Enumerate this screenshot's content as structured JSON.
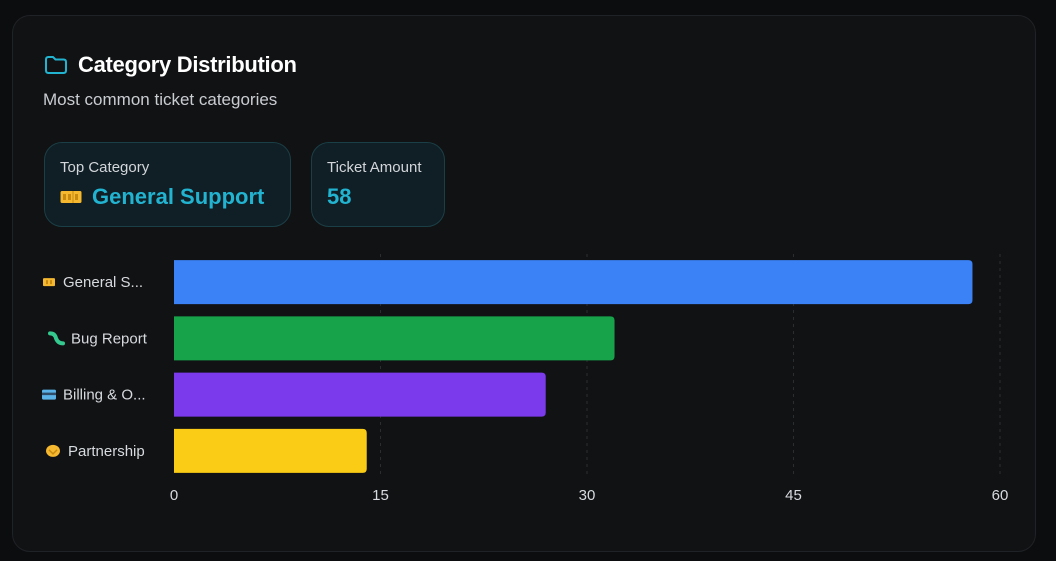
{
  "header": {
    "title": "Category Distribution",
    "subtitle": "Most common ticket categories",
    "icon": "folder-icon"
  },
  "stats": {
    "top_category_label": "Top Category",
    "top_category_value": "General Support",
    "top_category_icon": "ticket-icon",
    "ticket_amount_label": "Ticket Amount",
    "ticket_amount_value": "58"
  },
  "colors": {
    "accent": "#22b3d1",
    "general_support": "#3b82f6",
    "bug_report": "#16a34a",
    "billing": "#7c3aed",
    "partnership": "#facc15"
  },
  "chart_data": {
    "type": "bar",
    "orientation": "horizontal",
    "categories": [
      "General S...",
      "Bug Report",
      "Billing & O...",
      "Partnership"
    ],
    "category_icons": [
      "ticket-icon",
      "bug-icon",
      "credit-card-icon",
      "handshake-icon"
    ],
    "values": [
      58,
      32,
      27,
      14
    ],
    "colors": [
      "#3b82f6",
      "#16a34a",
      "#7c3aed",
      "#facc15"
    ],
    "xlim": [
      0,
      60
    ],
    "xticks": [
      0,
      15,
      30,
      45,
      60
    ],
    "grid": true,
    "title": "",
    "xlabel": "",
    "ylabel": ""
  }
}
